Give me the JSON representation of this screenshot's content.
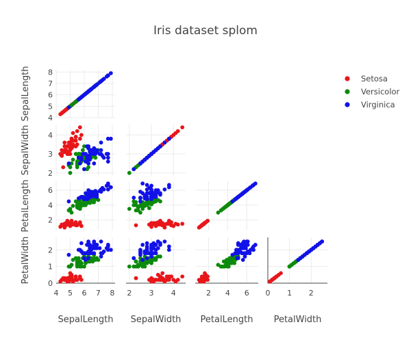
{
  "chart_data": {
    "type": "scatter",
    "title": "Iris dataset splom",
    "dimensions": [
      "SepalLength",
      "SepalWidth",
      "PetalLength",
      "PetalWidth"
    ],
    "axis_ticks": {
      "SepalLength": {
        "x": [
          4,
          5,
          6,
          7,
          8
        ],
        "y": [
          4,
          5,
          6,
          7,
          8
        ],
        "range": [
          4,
          8.2
        ]
      },
      "SepalWidth": {
        "x": [
          2,
          3,
          4
        ],
        "y": [
          2,
          3,
          4
        ],
        "range": [
          1.85,
          4.55
        ]
      },
      "PetalLength": {
        "x": [
          2,
          4,
          6
        ],
        "y": [
          2,
          4,
          6
        ],
        "range": [
          0.6,
          7.2
        ]
      },
      "PetalWidth": {
        "x": [
          0,
          1,
          2
        ],
        "y": [
          0,
          1,
          2
        ],
        "range": [
          0,
          2.75
        ]
      }
    },
    "legend_position": "top-right",
    "show_upper_half": false,
    "series": [
      {
        "name": "Setosa",
        "color": "#e8161a",
        "points": [
          [
            5.1,
            3.5,
            1.4,
            0.2
          ],
          [
            4.9,
            3.0,
            1.4,
            0.2
          ],
          [
            4.7,
            3.2,
            1.3,
            0.2
          ],
          [
            4.6,
            3.1,
            1.5,
            0.2
          ],
          [
            5.0,
            3.6,
            1.4,
            0.2
          ],
          [
            5.4,
            3.9,
            1.7,
            0.4
          ],
          [
            4.6,
            3.4,
            1.4,
            0.3
          ],
          [
            5.0,
            3.4,
            1.5,
            0.2
          ],
          [
            4.4,
            2.9,
            1.4,
            0.2
          ],
          [
            4.9,
            3.1,
            1.5,
            0.1
          ],
          [
            5.4,
            3.7,
            1.5,
            0.2
          ],
          [
            4.8,
            3.4,
            1.6,
            0.2
          ],
          [
            4.8,
            3.0,
            1.4,
            0.1
          ],
          [
            4.3,
            3.0,
            1.1,
            0.1
          ],
          [
            5.8,
            4.0,
            1.2,
            0.2
          ],
          [
            5.7,
            4.4,
            1.5,
            0.4
          ],
          [
            5.4,
            3.9,
            1.3,
            0.4
          ],
          [
            5.1,
            3.5,
            1.4,
            0.3
          ],
          [
            5.7,
            3.8,
            1.7,
            0.3
          ],
          [
            5.1,
            3.8,
            1.5,
            0.3
          ],
          [
            5.4,
            3.4,
            1.7,
            0.2
          ],
          [
            5.1,
            3.7,
            1.5,
            0.4
          ],
          [
            4.6,
            3.6,
            1.0,
            0.2
          ],
          [
            5.1,
            3.3,
            1.7,
            0.5
          ],
          [
            4.8,
            3.4,
            1.9,
            0.2
          ],
          [
            5.0,
            3.0,
            1.6,
            0.2
          ],
          [
            5.0,
            3.4,
            1.6,
            0.4
          ],
          [
            5.2,
            3.5,
            1.5,
            0.2
          ],
          [
            5.2,
            3.4,
            1.4,
            0.2
          ],
          [
            4.7,
            3.2,
            1.6,
            0.2
          ],
          [
            4.8,
            3.1,
            1.6,
            0.2
          ],
          [
            5.4,
            3.4,
            1.5,
            0.4
          ],
          [
            5.2,
            4.1,
            1.5,
            0.1
          ],
          [
            5.5,
            4.2,
            1.4,
            0.2
          ],
          [
            4.9,
            3.1,
            1.5,
            0.2
          ],
          [
            5.0,
            3.2,
            1.2,
            0.2
          ],
          [
            5.5,
            3.5,
            1.3,
            0.2
          ],
          [
            4.9,
            3.6,
            1.4,
            0.1
          ],
          [
            4.4,
            3.0,
            1.3,
            0.2
          ],
          [
            5.1,
            3.4,
            1.5,
            0.2
          ],
          [
            5.0,
            3.5,
            1.3,
            0.3
          ],
          [
            4.5,
            2.3,
            1.3,
            0.3
          ],
          [
            4.4,
            3.2,
            1.3,
            0.2
          ],
          [
            5.0,
            3.5,
            1.6,
            0.6
          ],
          [
            5.1,
            3.8,
            1.9,
            0.4
          ],
          [
            4.8,
            3.0,
            1.4,
            0.3
          ],
          [
            5.1,
            3.8,
            1.6,
            0.2
          ],
          [
            4.6,
            3.2,
            1.4,
            0.2
          ],
          [
            5.3,
            3.7,
            1.5,
            0.2
          ],
          [
            5.0,
            3.3,
            1.4,
            0.2
          ]
        ]
      },
      {
        "name": "Versicolor",
        "color": "#0c8a0c",
        "points": [
          [
            7.0,
            3.2,
            4.7,
            1.4
          ],
          [
            6.4,
            3.2,
            4.5,
            1.5
          ],
          [
            6.9,
            3.1,
            4.9,
            1.5
          ],
          [
            5.5,
            2.3,
            4.0,
            1.3
          ],
          [
            6.5,
            2.8,
            4.6,
            1.5
          ],
          [
            5.7,
            2.8,
            4.5,
            1.3
          ],
          [
            6.3,
            3.3,
            4.7,
            1.6
          ],
          [
            4.9,
            2.4,
            3.3,
            1.0
          ],
          [
            6.6,
            2.9,
            4.6,
            1.3
          ],
          [
            5.2,
            2.7,
            3.9,
            1.4
          ],
          [
            5.0,
            2.0,
            3.5,
            1.0
          ],
          [
            5.9,
            3.0,
            4.2,
            1.5
          ],
          [
            6.0,
            2.2,
            4.0,
            1.0
          ],
          [
            6.1,
            2.9,
            4.7,
            1.4
          ],
          [
            5.6,
            2.9,
            3.6,
            1.3
          ],
          [
            6.7,
            3.1,
            4.4,
            1.4
          ],
          [
            5.6,
            3.0,
            4.5,
            1.5
          ],
          [
            5.8,
            2.7,
            4.1,
            1.0
          ],
          [
            6.2,
            2.2,
            4.5,
            1.5
          ],
          [
            5.6,
            2.5,
            3.9,
            1.1
          ],
          [
            5.9,
            3.2,
            4.8,
            1.8
          ],
          [
            6.1,
            2.8,
            4.0,
            1.3
          ],
          [
            6.3,
            2.5,
            4.9,
            1.5
          ],
          [
            6.1,
            2.8,
            4.7,
            1.2
          ],
          [
            6.4,
            2.9,
            4.3,
            1.3
          ],
          [
            6.6,
            3.0,
            4.4,
            1.4
          ],
          [
            6.8,
            2.8,
            4.8,
            1.4
          ],
          [
            6.7,
            3.0,
            5.0,
            1.7
          ],
          [
            6.0,
            2.9,
            4.5,
            1.5
          ],
          [
            5.7,
            2.6,
            3.5,
            1.0
          ],
          [
            5.5,
            2.4,
            3.8,
            1.1
          ],
          [
            5.5,
            2.4,
            3.7,
            1.0
          ],
          [
            5.8,
            2.7,
            3.9,
            1.2
          ],
          [
            6.0,
            2.7,
            5.1,
            1.6
          ],
          [
            5.4,
            3.0,
            4.5,
            1.5
          ],
          [
            6.0,
            3.4,
            4.5,
            1.6
          ],
          [
            6.7,
            3.1,
            4.7,
            1.5
          ],
          [
            6.3,
            2.3,
            4.4,
            1.3
          ],
          [
            5.6,
            3.0,
            4.1,
            1.3
          ],
          [
            5.5,
            2.5,
            4.0,
            1.3
          ],
          [
            5.5,
            2.6,
            4.4,
            1.2
          ],
          [
            6.1,
            3.0,
            4.6,
            1.4
          ],
          [
            5.8,
            2.6,
            4.0,
            1.2
          ],
          [
            5.0,
            2.3,
            3.3,
            1.0
          ],
          [
            5.6,
            2.7,
            4.2,
            1.3
          ],
          [
            5.7,
            3.0,
            4.2,
            1.2
          ],
          [
            5.7,
            2.9,
            4.2,
            1.3
          ],
          [
            6.2,
            2.9,
            4.3,
            1.3
          ],
          [
            5.1,
            2.5,
            3.0,
            1.1
          ],
          [
            5.7,
            2.8,
            4.1,
            1.3
          ]
        ]
      },
      {
        "name": "Virginica",
        "color": "#1212e8",
        "points": [
          [
            6.3,
            3.3,
            6.0,
            2.5
          ],
          [
            5.8,
            2.7,
            5.1,
            1.9
          ],
          [
            7.1,
            3.0,
            5.9,
            2.1
          ],
          [
            6.3,
            2.9,
            5.6,
            1.8
          ],
          [
            6.5,
            3.0,
            5.8,
            2.2
          ],
          [
            7.6,
            3.0,
            6.6,
            2.1
          ],
          [
            4.9,
            2.5,
            4.5,
            1.7
          ],
          [
            7.3,
            2.9,
            6.3,
            1.8
          ],
          [
            6.7,
            2.5,
            5.8,
            1.8
          ],
          [
            7.2,
            3.6,
            6.1,
            2.5
          ],
          [
            6.5,
            3.2,
            5.1,
            2.0
          ],
          [
            6.4,
            2.7,
            5.3,
            1.9
          ],
          [
            6.8,
            3.0,
            5.5,
            2.1
          ],
          [
            5.7,
            2.5,
            5.0,
            2.0
          ],
          [
            5.8,
            2.8,
            5.1,
            2.4
          ],
          [
            6.4,
            3.2,
            5.3,
            2.3
          ],
          [
            6.5,
            3.0,
            5.5,
            1.8
          ],
          [
            7.7,
            3.8,
            6.7,
            2.2
          ],
          [
            7.7,
            2.6,
            6.9,
            2.3
          ],
          [
            6.0,
            2.2,
            5.0,
            1.5
          ],
          [
            6.9,
            3.2,
            5.7,
            2.3
          ],
          [
            5.6,
            2.8,
            4.9,
            2.0
          ],
          [
            7.7,
            2.8,
            6.7,
            2.0
          ],
          [
            6.3,
            2.7,
            4.9,
            1.8
          ],
          [
            6.7,
            3.3,
            5.7,
            2.1
          ],
          [
            7.2,
            3.2,
            6.0,
            1.8
          ],
          [
            6.2,
            2.8,
            4.8,
            1.8
          ],
          [
            6.1,
            3.0,
            4.9,
            1.8
          ],
          [
            6.4,
            2.8,
            5.6,
            2.1
          ],
          [
            7.2,
            3.0,
            5.8,
            1.6
          ],
          [
            7.4,
            2.8,
            6.1,
            1.9
          ],
          [
            7.9,
            3.8,
            6.4,
            2.0
          ],
          [
            6.4,
            2.8,
            5.6,
            2.2
          ],
          [
            6.3,
            2.8,
            5.1,
            1.5
          ],
          [
            6.1,
            2.6,
            5.6,
            1.4
          ],
          [
            7.7,
            3.0,
            6.1,
            2.3
          ],
          [
            6.3,
            3.4,
            5.6,
            2.4
          ],
          [
            6.4,
            3.1,
            5.5,
            1.8
          ],
          [
            6.0,
            3.0,
            4.8,
            1.8
          ],
          [
            6.9,
            3.1,
            5.4,
            2.1
          ],
          [
            6.7,
            3.1,
            5.6,
            2.4
          ],
          [
            6.9,
            3.1,
            5.1,
            2.3
          ],
          [
            5.8,
            2.7,
            5.1,
            1.9
          ],
          [
            6.8,
            3.2,
            5.9,
            2.3
          ],
          [
            6.7,
            3.3,
            5.7,
            2.5
          ],
          [
            6.7,
            3.0,
            5.2,
            2.3
          ],
          [
            6.3,
            2.5,
            5.0,
            1.9
          ],
          [
            6.5,
            3.0,
            5.2,
            2.0
          ],
          [
            6.2,
            3.4,
            5.4,
            2.3
          ],
          [
            5.9,
            3.0,
            5.1,
            1.8
          ]
        ]
      }
    ]
  }
}
